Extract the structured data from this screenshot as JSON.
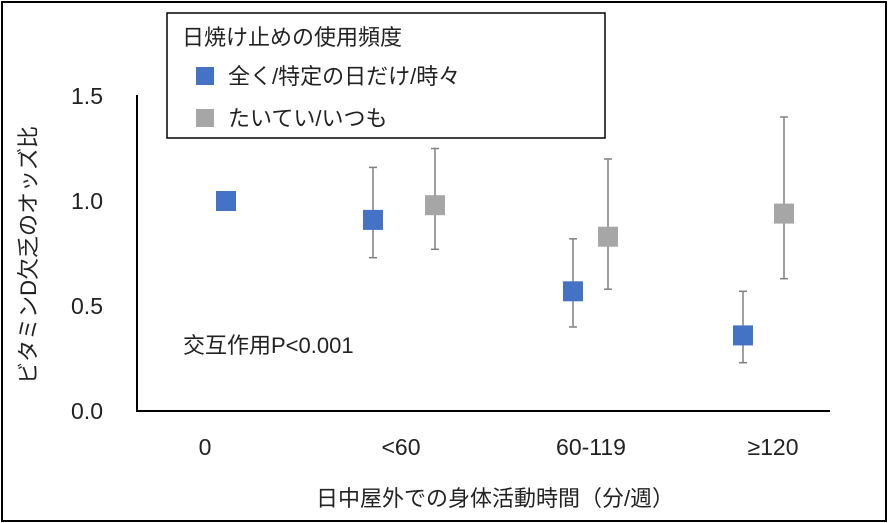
{
  "chart_data": {
    "type": "scatter",
    "xlabel": "日中屋外での身体活動時間（分/週）",
    "ylabel": "ビタミンD欠乏のオッズ比",
    "ylim": [
      0.0,
      1.5
    ],
    "yticks": [
      "0.0",
      "0.5",
      "1.0",
      "1.5"
    ],
    "categories": [
      "0",
      "<60",
      "60-119",
      "≥120"
    ],
    "legend": {
      "title": "日焼け止めの使用頻度",
      "placement": "top-center"
    },
    "series": [
      {
        "name": "全く/特定の日だけ/時々",
        "color": "#4472C4",
        "points": [
          {
            "category": "0",
            "value": 1.0,
            "lower": null,
            "upper": null
          },
          {
            "category": "<60",
            "value": 0.91,
            "lower": 0.73,
            "upper": 1.16
          },
          {
            "category": "60-119",
            "value": 0.57,
            "lower": 0.4,
            "upper": 0.82
          },
          {
            "category": "≥120",
            "value": 0.36,
            "lower": 0.23,
            "upper": 0.57
          }
        ]
      },
      {
        "name": "たいてい/いつも",
        "color": "#A6A6A6",
        "points": [
          {
            "category": "<60",
            "value": 0.98,
            "lower": 0.77,
            "upper": 1.25
          },
          {
            "category": "60-119",
            "value": 0.83,
            "lower": 0.58,
            "upper": 1.2
          },
          {
            "category": "≥120",
            "value": 0.94,
            "lower": 0.63,
            "upper": 1.4
          }
        ]
      }
    ],
    "annotation": "交互作用P<0.001",
    "grid": false
  }
}
